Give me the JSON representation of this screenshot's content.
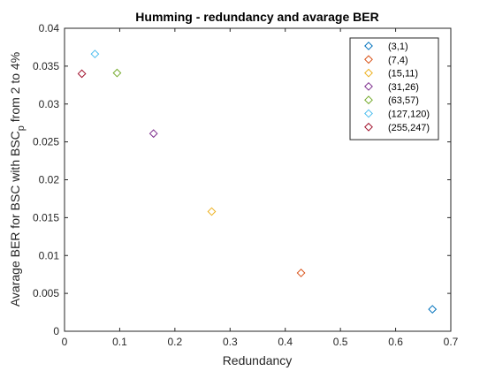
{
  "chart_data": {
    "type": "scatter",
    "title": "Humming - redundancy and avarage BER",
    "xlabel": "Redundancy",
    "ylabel_main": "Avarage BER for BSC with BSC",
    "ylabel_sub": "p",
    "ylabel_tail": " from 2 to 4%",
    "xlim": [
      0,
      0.7
    ],
    "ylim": [
      0,
      0.04
    ],
    "xticks": [
      0,
      0.1,
      0.2,
      0.3,
      0.4,
      0.5,
      0.6,
      0.7
    ],
    "xtick_labels": [
      "0",
      "0.1",
      "0.2",
      "0.3",
      "0.4",
      "0.5",
      "0.6",
      "0.7"
    ],
    "yticks": [
      0,
      0.005,
      0.01,
      0.015,
      0.02,
      0.025,
      0.03,
      0.035,
      0.04
    ],
    "ytick_labels": [
      "0",
      "0.005",
      "0.01",
      "0.015",
      "0.02",
      "0.025",
      "0.03",
      "0.035",
      "0.04"
    ],
    "grid": false,
    "legend_position": "top-right",
    "marker": "diamond",
    "series": [
      {
        "name": "(3,1)",
        "x": 0.6667,
        "y": 0.0029,
        "color": "#0072BD"
      },
      {
        "name": "(7,4)",
        "x": 0.4286,
        "y": 0.0077,
        "color": "#D95319"
      },
      {
        "name": "(15,11)",
        "x": 0.2667,
        "y": 0.0158,
        "color": "#EDB120"
      },
      {
        "name": "(31,26)",
        "x": 0.1613,
        "y": 0.0261,
        "color": "#7E2F8E"
      },
      {
        "name": "(63,57)",
        "x": 0.0952,
        "y": 0.0341,
        "color": "#77AC30"
      },
      {
        "name": "(127,120)",
        "x": 0.0551,
        "y": 0.0366,
        "color": "#4DBEEE"
      },
      {
        "name": "(255,247)",
        "x": 0.0314,
        "y": 0.034,
        "color": "#A2142F"
      }
    ]
  }
}
